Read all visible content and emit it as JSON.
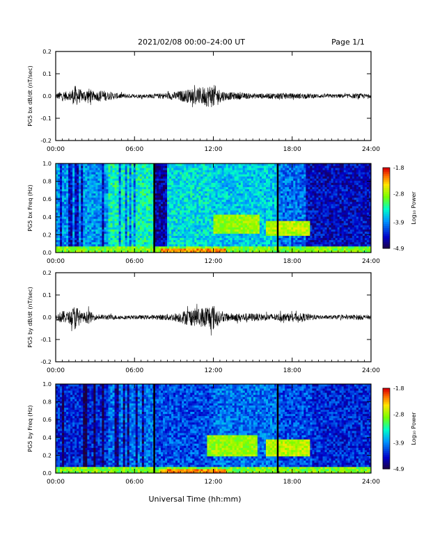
{
  "header": {
    "date_range": "2021/02/08  00:00–24:00 UT",
    "page": "Page 1/1"
  },
  "footer": {
    "xlabel": "Universal Time (hh:mm)"
  },
  "colors": {
    "trace": "#000000",
    "axes": "#000000",
    "background": "#ffffff"
  },
  "chart_data": [
    {
      "type": "line",
      "ylabel": "PG5 bx dB/dt (nT/sec)",
      "x_ticks": [
        "00:00",
        "06:00",
        "12:00",
        "18:00",
        "24:00"
      ],
      "xlim_hours": [
        0,
        24
      ],
      "ylim": [
        -0.2,
        0.2
      ],
      "y_ticks": [
        "0.2",
        "0.1",
        "0.0",
        "-0.1",
        "-0.2"
      ],
      "series": [
        {
          "x_hours": [
            0,
            0.5,
            1,
            1.5,
            2,
            2.5,
            3,
            3.5,
            4,
            5,
            6,
            7,
            8,
            9,
            9.5,
            10,
            10.5,
            11,
            11.5,
            12,
            12.5,
            13,
            14,
            15,
            16,
            17,
            18,
            19,
            20,
            21,
            22,
            23,
            24
          ],
          "envelope": [
            0.02,
            0.04,
            0.03,
            0.08,
            0.04,
            0.06,
            0.03,
            0.05,
            0.03,
            0.02,
            0.015,
            0.015,
            0.02,
            0.03,
            0.04,
            0.05,
            0.055,
            0.065,
            0.08,
            0.09,
            0.05,
            0.03,
            0.025,
            0.02,
            0.02,
            0.025,
            0.02,
            0.02,
            0.015,
            0.015,
            0.015,
            0.02,
            0.015
          ]
        }
      ]
    },
    {
      "type": "heatmap",
      "ylabel": "PG5 bx Freq (Hz)",
      "x_ticks": [
        "00:00",
        "06:00",
        "12:00",
        "18:00",
        "24:00"
      ],
      "xlim_hours": [
        0,
        24
      ],
      "ylim": [
        0.0,
        1.0
      ],
      "y_ticks": [
        "1.0",
        "0.8",
        "0.6",
        "0.4",
        "0.2",
        "0.0"
      ],
      "colorbar": {
        "label": "Log₁₀ Power",
        "ticks": [
          "-1.8",
          "-2.8",
          "-3.9",
          "-4.9"
        ],
        "range": [
          -4.9,
          -1.8
        ]
      },
      "marker_lines_hours": [
        7.5,
        16.9
      ],
      "bands": [
        {
          "start_hours": 0,
          "end_hours": 4,
          "level": 0.35
        },
        {
          "start_hours": 4,
          "end_hours": 7.5,
          "level": 0.5
        },
        {
          "start_hours": 7.5,
          "end_hours": 8.5,
          "level": 0.12
        },
        {
          "start_hours": 8.5,
          "end_hours": 12,
          "level": 0.45
        },
        {
          "start_hours": 12,
          "end_hours": 16.9,
          "level": 0.42
        },
        {
          "start_hours": 16.9,
          "end_hours": 19,
          "level": 0.3
        },
        {
          "start_hours": 19,
          "end_hours": 24,
          "level": 0.15
        }
      ],
      "hotspots": [
        {
          "start_hours": 12,
          "end_hours": 15.5,
          "freq_hz": [
            0.22,
            0.42
          ],
          "level": 0.68
        },
        {
          "start_hours": 16,
          "end_hours": 19.3,
          "freq_hz": [
            0.2,
            0.35
          ],
          "level": 0.72
        },
        {
          "start_hours": 8,
          "end_hours": 13,
          "freq_hz": [
            0.0,
            0.05
          ],
          "level": 0.88
        }
      ]
    },
    {
      "type": "line",
      "ylabel": "PG5 by dB/dt (nT/sec)",
      "x_ticks": [
        "00:00",
        "06:00",
        "12:00",
        "18:00",
        "24:00"
      ],
      "xlim_hours": [
        0,
        24
      ],
      "ylim": [
        -0.2,
        0.2
      ],
      "y_ticks": [
        "0.2",
        "0.1",
        "0.0",
        "-0.1",
        "-0.2"
      ],
      "series": [
        {
          "x_hours": [
            0,
            0.5,
            1,
            1.5,
            2,
            2.5,
            3,
            3.5,
            4,
            5,
            6,
            7,
            8,
            9,
            9.5,
            10,
            10.5,
            11,
            11.5,
            12,
            12.5,
            13,
            14,
            15,
            16,
            17,
            18,
            19,
            20,
            21,
            22,
            23,
            24
          ],
          "envelope": [
            0.02,
            0.05,
            0.04,
            0.1,
            0.03,
            0.05,
            0.02,
            0.02,
            0.02,
            0.015,
            0.015,
            0.015,
            0.02,
            0.03,
            0.04,
            0.06,
            0.065,
            0.07,
            0.09,
            0.1,
            0.04,
            0.03,
            0.03,
            0.03,
            0.025,
            0.03,
            0.03,
            0.03,
            0.015,
            0.015,
            0.015,
            0.02,
            0.015
          ]
        }
      ]
    },
    {
      "type": "heatmap",
      "ylabel": "PG5 by Freq (Hz)",
      "x_ticks": [
        "00:00",
        "06:00",
        "12:00",
        "18:00",
        "24:00"
      ],
      "xlim_hours": [
        0,
        24
      ],
      "ylim": [
        0.0,
        1.0
      ],
      "y_ticks": [
        "1.0",
        "0.8",
        "0.6",
        "0.4",
        "0.2",
        "0.0"
      ],
      "colorbar": {
        "label": "Log₁₀ Power",
        "ticks": [
          "-1.8",
          "-2.8",
          "-3.9",
          "-4.9"
        ],
        "range": [
          -4.9,
          -1.8
        ]
      },
      "marker_lines_hours": [
        7.5,
        16.9
      ],
      "bands": [
        {
          "start_hours": 0,
          "end_hours": 4,
          "level": 0.2
        },
        {
          "start_hours": 4,
          "end_hours": 7.5,
          "level": 0.3
        },
        {
          "start_hours": 7.5,
          "end_hours": 12,
          "level": 0.25
        },
        {
          "start_hours": 12,
          "end_hours": 16.9,
          "level": 0.3
        },
        {
          "start_hours": 16.9,
          "end_hours": 19.5,
          "level": 0.25
        },
        {
          "start_hours": 19.5,
          "end_hours": 24,
          "level": 0.2
        }
      ],
      "hotspots": [
        {
          "start_hours": 11.5,
          "end_hours": 15.3,
          "freq_hz": [
            0.2,
            0.42
          ],
          "level": 0.68
        },
        {
          "start_hours": 16,
          "end_hours": 19.3,
          "freq_hz": [
            0.18,
            0.38
          ],
          "level": 0.72
        },
        {
          "start_hours": 8,
          "end_hours": 13,
          "freq_hz": [
            0.0,
            0.05
          ],
          "level": 0.88
        }
      ]
    }
  ]
}
